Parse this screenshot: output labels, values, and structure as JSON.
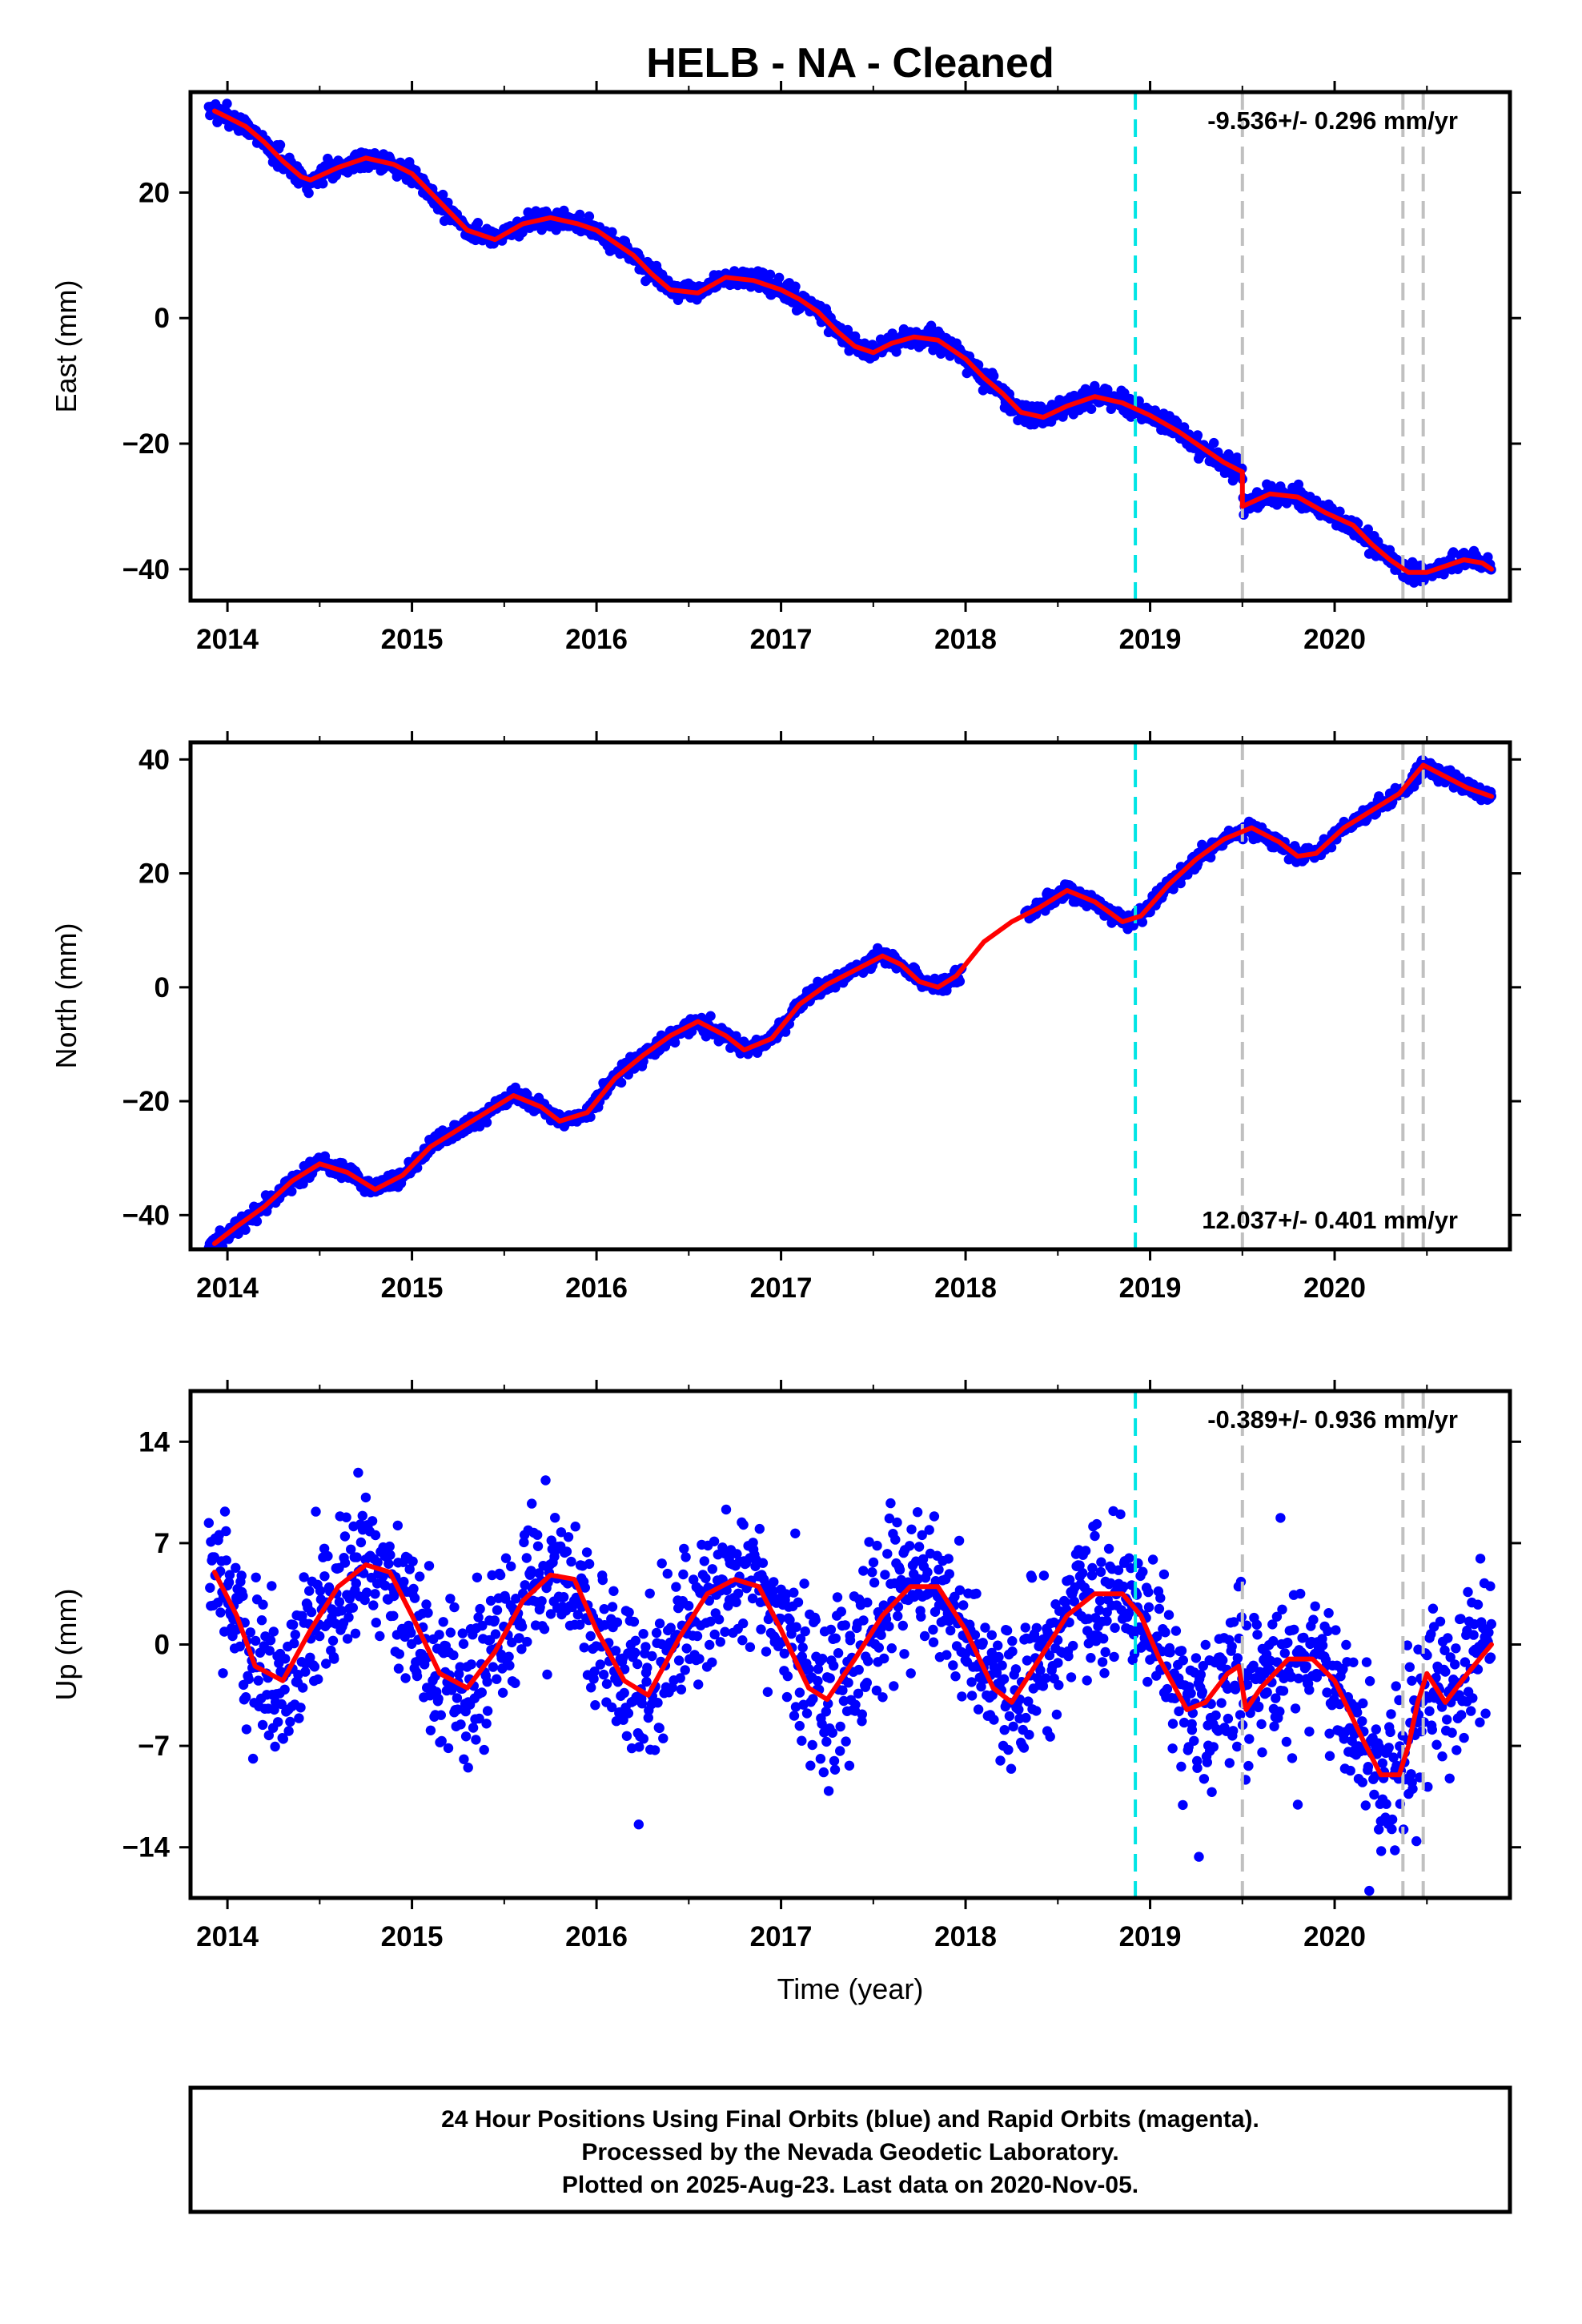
{
  "chart_data": {
    "title": "HELB  - NA - Cleaned",
    "type": "scatter",
    "xlabel": "Time (year)",
    "xlim": [
      2013.8,
      2020.95
    ],
    "x_ticks": [
      2014,
      2015,
      2016,
      2017,
      2018,
      2019,
      2020
    ],
    "colors": {
      "data": "#0000ff",
      "model": "#ff0000",
      "reference_line": "#00e5e5",
      "event_lines": "#c0c0c0"
    },
    "reference_line_x": 2018.92,
    "event_lines_x": [
      2019.5,
      2020.37,
      2020.48
    ],
    "panels": [
      {
        "name": "east",
        "ylabel": "East (mm)",
        "ylim": [
          -45,
          36
        ],
        "y_ticks": [
          20,
          0,
          -20,
          -40
        ],
        "rate_label": "-9.536+/- 0.296 mm/yr",
        "rate_position": "top-right",
        "model_x": [
          2013.93,
          2014.0,
          2014.1,
          2014.2,
          2014.3,
          2014.4,
          2014.45,
          2014.6,
          2014.75,
          2014.9,
          2015.0,
          2015.1,
          2015.2,
          2015.3,
          2015.45,
          2015.6,
          2015.75,
          2015.9,
          2016.0,
          2016.1,
          2016.2,
          2016.3,
          2016.4,
          2016.55,
          2016.7,
          2016.85,
          2017.0,
          2017.1,
          2017.2,
          2017.3,
          2017.4,
          2017.5,
          2017.6,
          2017.72,
          2017.85,
          2018.0,
          2018.1,
          2018.2,
          2018.3,
          2018.42,
          2018.55,
          2018.7,
          2018.85,
          2019.0,
          2019.15,
          2019.3,
          2019.4,
          2019.5,
          2019.5,
          2019.65,
          2019.8,
          2019.95,
          2020.1,
          2020.2,
          2020.3,
          2020.4,
          2020.5,
          2020.6,
          2020.7,
          2020.8,
          2020.85
        ],
        "model_y": [
          33,
          32,
          30.5,
          28,
          25,
          22.5,
          22,
          24,
          25.5,
          24.5,
          23,
          20,
          17,
          14,
          12.5,
          15,
          16,
          15,
          14,
          12,
          10,
          7,
          4.5,
          4,
          6.5,
          6,
          4.5,
          3,
          1,
          -2,
          -4.5,
          -5.5,
          -4,
          -3,
          -3.5,
          -6.5,
          -9.5,
          -12,
          -15,
          -15.8,
          -14,
          -12.5,
          -13.5,
          -15.5,
          -18,
          -21,
          -23,
          -24.5,
          -30,
          -28,
          -28.5,
          -31,
          -33,
          -36,
          -38.5,
          -40.5,
          -40.5,
          -39.5,
          -38.5,
          -39,
          -40
        ],
        "series": [
          {
            "kind": "residual_walk",
            "x_start": 2013.9,
            "x_end": 2020.85,
            "count": 1700,
            "jitter": 1.1,
            "seed": 7
          }
        ]
      },
      {
        "name": "north",
        "ylabel": "North (mm)",
        "ylim": [
          -46,
          43
        ],
        "y_ticks": [
          40,
          20,
          0,
          -20,
          -40
        ],
        "rate_label": "12.037+/- 0.401 mm/yr",
        "rate_position": "bottom-right",
        "model_x": [
          2013.93,
          2014.05,
          2014.2,
          2014.35,
          2014.5,
          2014.65,
          2014.8,
          2014.95,
          2015.1,
          2015.25,
          2015.4,
          2015.55,
          2015.7,
          2015.8,
          2015.95,
          2016.1,
          2016.25,
          2016.4,
          2016.55,
          2016.7,
          2016.8,
          2016.95,
          2017.1,
          2017.25,
          2017.4,
          2017.55,
          2017.65,
          2017.75,
          2017.85,
          2017.95,
          2018.1,
          2018.25,
          2018.4,
          2018.55,
          2018.7,
          2018.85,
          2018.95,
          2019.1,
          2019.25,
          2019.4,
          2019.55,
          2019.7,
          2019.8,
          2019.9,
          2020.05,
          2020.2,
          2020.35,
          2020.48,
          2020.6,
          2020.72,
          2020.85
        ],
        "model_y": [
          -45,
          -42,
          -38.5,
          -34,
          -31,
          -32.5,
          -35.5,
          -33,
          -28,
          -25,
          -22,
          -19,
          -21,
          -23.5,
          -22,
          -16,
          -12,
          -8.5,
          -6,
          -8.5,
          -11,
          -9,
          -3,
          0.5,
          3,
          5.5,
          4,
          1,
          0,
          2,
          8,
          11.5,
          14,
          17,
          15,
          11.5,
          12.5,
          18,
          22.5,
          26,
          28,
          25.5,
          23,
          23.5,
          28,
          31,
          34,
          39,
          37,
          35,
          33.5
        ],
        "series": [
          {
            "kind": "residual_walk",
            "x_start": 2013.9,
            "x_end": 2020.85,
            "gap": [
              2017.98,
              2018.32
            ],
            "count": 1650,
            "jitter": 1.0,
            "seed": 13
          }
        ]
      },
      {
        "name": "up",
        "ylabel": "Up (mm)",
        "ylim": [
          -17.5,
          17.5
        ],
        "y_ticks": [
          14,
          7,
          0,
          -7,
          -14
        ],
        "rate_label": "-0.389+/- 0.936 mm/yr",
        "rate_position": "top-right",
        "model_x": [
          2013.93,
          2014.05,
          2014.15,
          2014.3,
          2014.45,
          2014.6,
          2014.75,
          2014.88,
          2015.0,
          2015.15,
          2015.3,
          2015.45,
          2015.6,
          2015.75,
          2015.88,
          2016.0,
          2016.15,
          2016.28,
          2016.45,
          2016.6,
          2016.75,
          2016.88,
          2017.0,
          2017.15,
          2017.25,
          2017.4,
          2017.55,
          2017.7,
          2017.85,
          2018.0,
          2018.15,
          2018.25,
          2018.4,
          2018.55,
          2018.7,
          2018.85,
          2018.95,
          2019.05,
          2019.2,
          2019.3,
          2019.42,
          2019.48,
          2019.52,
          2019.6,
          2019.75,
          2019.88,
          2020.0,
          2020.15,
          2020.25,
          2020.35,
          2020.4,
          2020.45,
          2020.5,
          2020.6,
          2020.72,
          2020.85
        ],
        "model_y": [
          5,
          2,
          -1.5,
          -2.5,
          1,
          4,
          5.5,
          5,
          2,
          -2,
          -3,
          -0.5,
          3,
          4.8,
          4.5,
          1,
          -2.5,
          -3.5,
          0.5,
          3.5,
          4.5,
          4,
          1,
          -3,
          -3.8,
          -1,
          2,
          4,
          4,
          1,
          -3,
          -4,
          -1,
          2,
          3.5,
          3.5,
          2,
          -1,
          -4.5,
          -4,
          -2,
          -1.5,
          -4.5,
          -3,
          -1,
          -1,
          -2.5,
          -6.5,
          -9,
          -9,
          -7,
          -4,
          -2,
          -4,
          -2,
          0
        ],
        "series": [
          {
            "kind": "residual_scatter",
            "x_start": 2013.9,
            "x_end": 2020.85,
            "count": 1750,
            "jitter": 3.2,
            "seed": 29
          }
        ]
      }
    ]
  },
  "footer": {
    "line1": "24 Hour Positions Using Final Orbits (blue) and Rapid Orbits (magenta).",
    "line2": "Processed by the Nevada Geodetic Laboratory.",
    "line3": "Plotted on 2025-Aug-23. Last data on 2020-Nov-05."
  }
}
